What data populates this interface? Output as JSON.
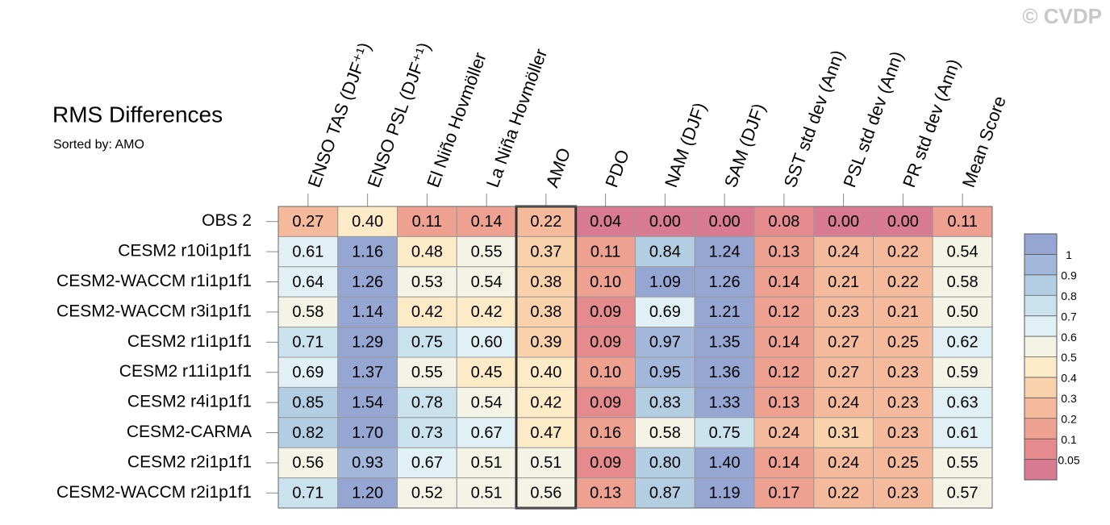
{
  "chart_data": {
    "type": "heatmap",
    "title": "RMS Differences",
    "subtitle": "Sorted by: AMO",
    "credit": "© CVDP",
    "columns": [
      "ENSO TAS (DJF⁺¹)",
      "ENSO PSL (DJF⁺¹)",
      "El Niño Hovmöller",
      "La Niña Hovmöller",
      "AMO",
      "PDO",
      "NAM (DJF)",
      "SAM (DJF)",
      "SST std dev (Ann)",
      "PSL std dev (Ann)",
      "PR std dev (Ann)",
      "Mean Score"
    ],
    "rows": [
      "OBS 2",
      "CESM2 r10i1p1f1",
      "CESM2-WACCM r1i1p1f1",
      "CESM2-WACCM r3i1p1f1",
      "CESM2 r1i1p1f1",
      "CESM2 r11i1p1f1",
      "CESM2 r4i1p1f1",
      "CESM2-CARMA",
      "CESM2 r2i1p1f1",
      "CESM2-WACCM r2i1p1f1"
    ],
    "highlight_column": 4,
    "values": [
      [
        0.27,
        0.4,
        0.11,
        0.14,
        0.22,
        0.04,
        0.0,
        0.0,
        0.08,
        0.0,
        0.0,
        0.11
      ],
      [
        0.61,
        1.16,
        0.48,
        0.55,
        0.37,
        0.11,
        0.84,
        1.24,
        0.13,
        0.24,
        0.22,
        0.54
      ],
      [
        0.64,
        1.26,
        0.53,
        0.54,
        0.38,
        0.1,
        1.09,
        1.26,
        0.14,
        0.21,
        0.22,
        0.58
      ],
      [
        0.58,
        1.14,
        0.42,
        0.42,
        0.38,
        0.09,
        0.69,
        1.21,
        0.12,
        0.23,
        0.21,
        0.5
      ],
      [
        0.71,
        1.29,
        0.75,
        0.6,
        0.39,
        0.09,
        0.97,
        1.35,
        0.14,
        0.27,
        0.25,
        0.62
      ],
      [
        0.69,
        1.37,
        0.55,
        0.45,
        0.4,
        0.1,
        0.95,
        1.36,
        0.12,
        0.27,
        0.23,
        0.59
      ],
      [
        0.85,
        1.54,
        0.78,
        0.54,
        0.42,
        0.09,
        0.83,
        1.33,
        0.13,
        0.24,
        0.23,
        0.63
      ],
      [
        0.82,
        1.7,
        0.73,
        0.67,
        0.47,
        0.16,
        0.58,
        0.75,
        0.24,
        0.31,
        0.23,
        0.61
      ],
      [
        0.56,
        0.93,
        0.67,
        0.51,
        0.51,
        0.09,
        0.8,
        1.4,
        0.14,
        0.24,
        0.25,
        0.55
      ],
      [
        0.71,
        1.2,
        0.52,
        0.51,
        0.56,
        0.13,
        0.87,
        1.19,
        0.17,
        0.22,
        0.23,
        0.57
      ]
    ],
    "value_labels": [
      [
        "0.27",
        "0.40",
        "0.11",
        "0.14",
        "0.22",
        "0.04",
        "0.00",
        "0.00",
        "0.08",
        "0.00",
        "0.00",
        "0.11"
      ],
      [
        "0.61",
        "1.16",
        "0.48",
        "0.55",
        "0.37",
        "0.11",
        "0.84",
        "1.24",
        "0.13",
        "0.24",
        "0.22",
        "0.54"
      ],
      [
        "0.64",
        "1.26",
        "0.53",
        "0.54",
        "0.38",
        "0.10",
        "1.09",
        "1.26",
        "0.14",
        "0.21",
        "0.22",
        "0.58"
      ],
      [
        "0.58",
        "1.14",
        "0.42",
        "0.42",
        "0.38",
        "0.09",
        "0.69",
        "1.21",
        "0.12",
        "0.23",
        "0.21",
        "0.50"
      ],
      [
        "0.71",
        "1.29",
        "0.75",
        "0.60",
        "0.39",
        "0.09",
        "0.97",
        "1.35",
        "0.14",
        "0.27",
        "0.25",
        "0.62"
      ],
      [
        "0.69",
        "1.37",
        "0.55",
        "0.45",
        "0.40",
        "0.10",
        "0.95",
        "1.36",
        "0.12",
        "0.27",
        "0.23",
        "0.59"
      ],
      [
        "0.85",
        "1.54",
        "0.78",
        "0.54",
        "0.42",
        "0.09",
        "0.83",
        "1.33",
        "0.13",
        "0.24",
        "0.23",
        "0.63"
      ],
      [
        "0.82",
        "1.70",
        "0.73",
        "0.67",
        "0.47",
        "0.16",
        "0.58",
        "0.75",
        "0.24",
        "0.31",
        "0.23",
        "0.61"
      ],
      [
        "0.56",
        "0.93",
        "0.67",
        "0.51",
        "0.51",
        "0.09",
        "0.80",
        "1.40",
        "0.14",
        "0.24",
        "0.25",
        "0.55"
      ],
      [
        "0.71",
        "1.20",
        "0.52",
        "0.51",
        "0.56",
        "0.13",
        "0.87",
        "1.19",
        "0.17",
        "0.22",
        "0.23",
        "0.57"
      ]
    ],
    "levels": [
      0.05,
      0.1,
      0.2,
      0.3,
      0.4,
      0.5,
      0.6,
      0.7,
      0.8,
      0.9,
      1
    ],
    "colors": [
      "#d77a92",
      "#e68b8d",
      "#efa191",
      "#f5b99b",
      "#f9d1aa",
      "#fdeac6",
      "#f4f4e6",
      "#e0f0f4",
      "#c9e2ee",
      "#b3cde3",
      "#a3b7da",
      "#95a6d3"
    ]
  }
}
